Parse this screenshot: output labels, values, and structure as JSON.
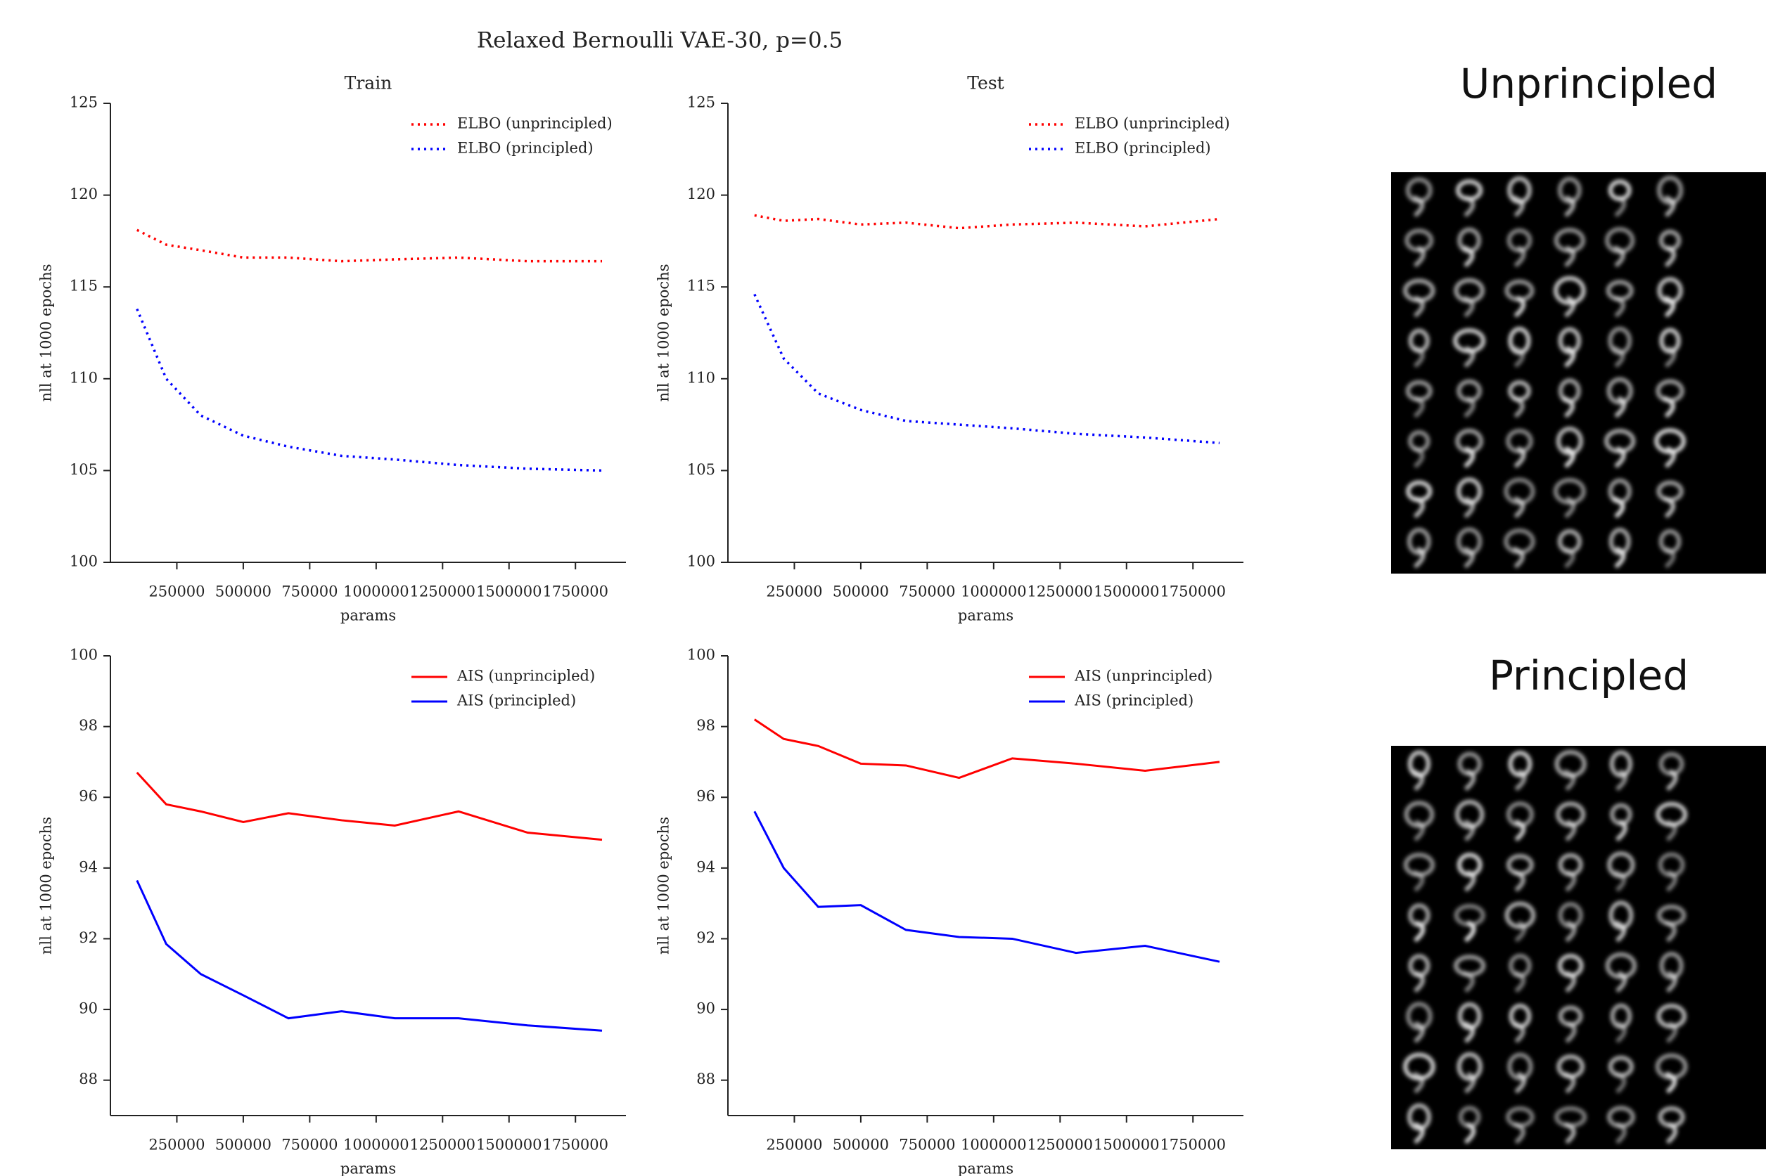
{
  "title": "Relaxed Bernoulli VAE-30, p=0.5",
  "chart_data": [
    {
      "type": "line",
      "title": "Train",
      "x_label": "params",
      "y_label": "nll at 1000 epochs",
      "linestyle": "dotted",
      "legend": "upper right",
      "x": [
        100000,
        210000,
        340000,
        500000,
        670000,
        870000,
        1070000,
        1310000,
        1570000,
        1850000
      ],
      "xlim": [
        0,
        1940000
      ],
      "xticks": [
        250000,
        500000,
        750000,
        1000000,
        1250000,
        1500000,
        1750000
      ],
      "ylim": [
        100,
        125
      ],
      "yticks": [
        100,
        105,
        110,
        115,
        120,
        125
      ],
      "series": [
        {
          "name": "ELBO (unprincipled)",
          "color": "#ff0000",
          "values": [
            118.1,
            117.3,
            117.0,
            116.6,
            116.6,
            116.4,
            116.5,
            116.6,
            116.4,
            116.4
          ]
        },
        {
          "name": "ELBO (principled)",
          "color": "#0000ff",
          "values": [
            113.8,
            110.0,
            108.0,
            106.9,
            106.3,
            105.8,
            105.6,
            105.3,
            105.1,
            105.0
          ]
        }
      ]
    },
    {
      "type": "line",
      "title": "Test",
      "x_label": "params",
      "y_label": "nll at 1000 epochs",
      "linestyle": "dotted",
      "legend": "upper right",
      "x": [
        100000,
        210000,
        340000,
        500000,
        670000,
        870000,
        1070000,
        1310000,
        1570000,
        1850000
      ],
      "xlim": [
        0,
        1940000
      ],
      "xticks": [
        250000,
        500000,
        750000,
        1000000,
        1250000,
        1500000,
        1750000
      ],
      "ylim": [
        100,
        125
      ],
      "yticks": [
        100,
        105,
        110,
        115,
        120,
        125
      ],
      "series": [
        {
          "name": "ELBO (unprincipled)",
          "color": "#ff0000",
          "values": [
            118.9,
            118.6,
            118.7,
            118.4,
            118.5,
            118.2,
            118.4,
            118.5,
            118.3,
            118.7
          ]
        },
        {
          "name": "ELBO (principled)",
          "color": "#0000ff",
          "values": [
            114.6,
            111.1,
            109.2,
            108.3,
            107.7,
            107.5,
            107.3,
            107.0,
            106.8,
            106.5
          ]
        }
      ]
    },
    {
      "type": "line",
      "x_label": "params",
      "y_label": "nll at 1000 epochs",
      "linestyle": "solid",
      "legend": "upper right",
      "x": [
        100000,
        210000,
        340000,
        500000,
        670000,
        870000,
        1070000,
        1310000,
        1570000,
        1850000
      ],
      "xlim": [
        0,
        1940000
      ],
      "xticks": [
        250000,
        500000,
        750000,
        1000000,
        1250000,
        1500000,
        1750000
      ],
      "ylim": [
        87,
        100
      ],
      "yticks": [
        88,
        90,
        92,
        94,
        96,
        98,
        100
      ],
      "series": [
        {
          "name": "AIS (unprincipled)",
          "color": "#ff0000",
          "values": [
            96.7,
            95.8,
            95.6,
            95.3,
            95.55,
            95.35,
            95.2,
            95.6,
            95.0,
            94.8
          ]
        },
        {
          "name": "AIS (principled)",
          "color": "#0000ff",
          "values": [
            93.65,
            91.85,
            91.0,
            90.4,
            89.75,
            89.95,
            89.75,
            89.75,
            89.55,
            89.4
          ]
        }
      ]
    },
    {
      "type": "line",
      "x_label": "params",
      "y_label": "nll at 1000 epochs",
      "linestyle": "solid",
      "legend": "upper right",
      "x": [
        100000,
        210000,
        340000,
        500000,
        670000,
        870000,
        1070000,
        1310000,
        1570000,
        1850000
      ],
      "xlim": [
        0,
        1940000
      ],
      "xticks": [
        250000,
        500000,
        750000,
        1000000,
        1250000,
        1500000,
        1750000
      ],
      "ylim": [
        87,
        100
      ],
      "yticks": [
        88,
        90,
        92,
        94,
        96,
        98,
        100
      ],
      "series": [
        {
          "name": "AIS (unprincipled)",
          "color": "#ff0000",
          "values": [
            98.2,
            97.65,
            97.45,
            96.95,
            96.9,
            96.55,
            97.1,
            96.95,
            96.75,
            97.0
          ]
        },
        {
          "name": "AIS (principled)",
          "color": "#0000ff",
          "values": [
            95.6,
            94.0,
            92.9,
            92.95,
            92.25,
            92.05,
            92.0,
            91.6,
            91.8,
            91.35
          ]
        }
      ]
    }
  ],
  "panels": [
    {
      "label": "Unprincipled"
    },
    {
      "label": "Principled"
    }
  ]
}
